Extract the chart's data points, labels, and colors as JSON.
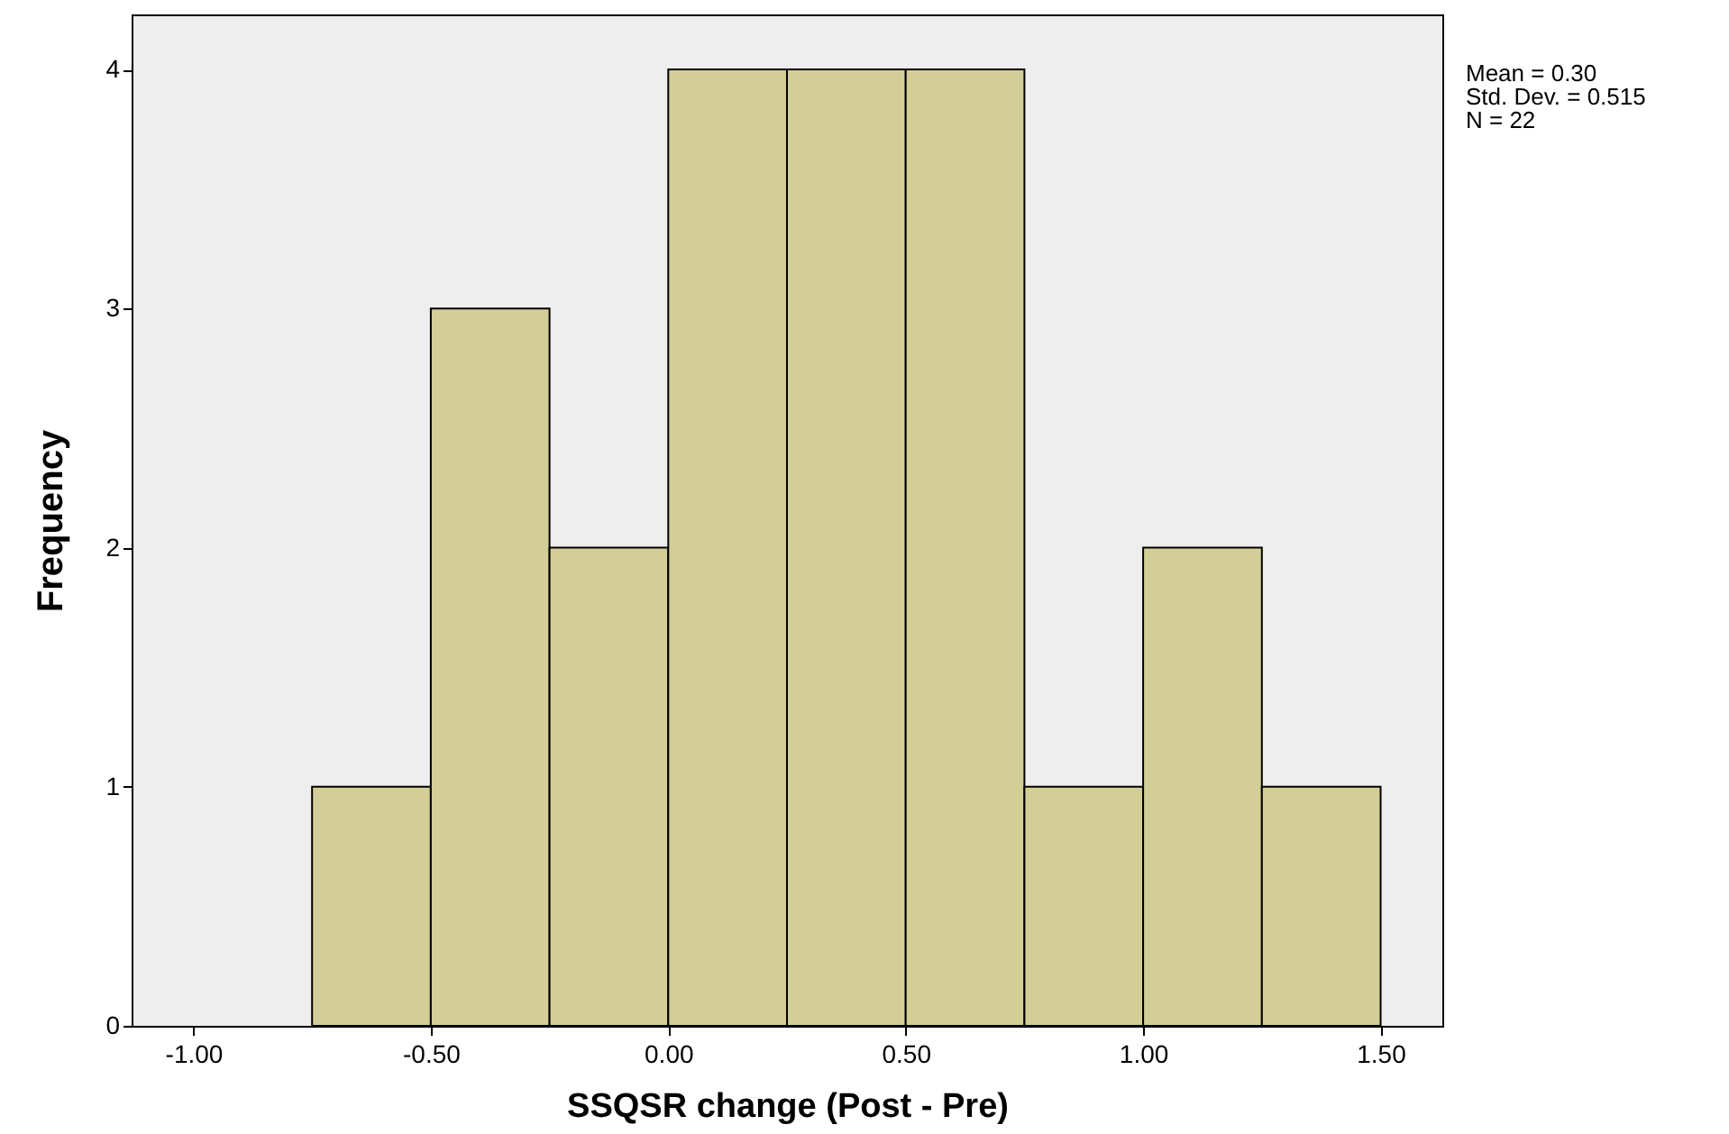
{
  "chart_data": {
    "type": "histogram",
    "xlabel": "SSQSR change (Post - Pre)",
    "ylabel": "Frequency",
    "bins": [
      -0.75,
      -0.5,
      -0.25,
      0,
      0.25,
      0.5,
      0.75,
      1,
      1.25,
      1.5
    ],
    "values": [
      1,
      3,
      2,
      4,
      4,
      4,
      1,
      2,
      1
    ],
    "color": "#d3ce97",
    "xlim": [
      -1.13,
      1.63
    ],
    "xticks": [
      {
        "value": -1,
        "label": "-1.00"
      },
      {
        "value": -0.5,
        "label": "-0.50"
      },
      {
        "value": 0,
        "label": "0.00"
      },
      {
        "value": 0.5,
        "label": "0.50"
      },
      {
        "value": 1,
        "label": "1.00"
      },
      {
        "value": 1.5,
        "label": "1.50"
      }
    ],
    "ylim": [
      0,
      4.23
    ],
    "yticks": [
      0,
      1,
      2,
      3,
      4
    ],
    "annotations": [
      "Mean = 0.30",
      "Std. Dev. = 0.515",
      "N = 22"
    ]
  }
}
